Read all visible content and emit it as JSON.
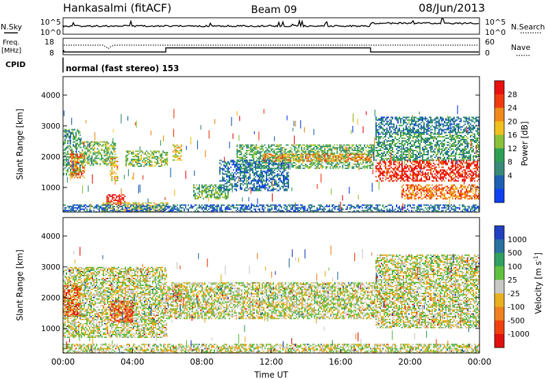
{
  "header": {
    "station": "Hankasalmi (fitACF)",
    "beam": "Beam 09",
    "date": "08/Jun/2013"
  },
  "summary_panels": {
    "nsky_label": "N.Sky",
    "nsky_top_tick": "10^5",
    "nsky_bottom_tick": "10^0",
    "nsearch_label": "N.Search",
    "nsearch_top_tick": "10^5",
    "nsearch_bottom_tick": "10^0",
    "freq_label": "Freq.",
    "freq_unit": "[MHz]",
    "freq_top_tick": "18",
    "freq_bottom_tick": "8",
    "nave_label": "Nave",
    "nave_top_tick": "60",
    "nave_bottom_tick": "0",
    "cpid_label": "CPID",
    "cpid_text": "normal (fast stereo) 153"
  },
  "chart_data": [
    {
      "type": "heatmap",
      "name": "power",
      "ylabel": "Slant Range [km]",
      "ylim": [
        200,
        4600
      ],
      "yticks": [
        "1000",
        "2000",
        "3000",
        "4000"
      ],
      "xlim": [
        0,
        24
      ],
      "colorbar": {
        "label": "Power [dB]",
        "ticks": [
          "4",
          "8",
          "12",
          "16",
          "20",
          "24",
          "28"
        ],
        "colors": [
          "#1040f0",
          "#1f5fb4",
          "#3a8a7a",
          "#2ea055",
          "#8ac03a",
          "#f0c020",
          "#f08a1a",
          "#f03a10",
          "#e81010"
        ]
      },
      "regions": [
        {
          "t": [
            0.0,
            1.0
          ],
          "r": [
            1400,
            2900
          ],
          "level": 0.35
        },
        {
          "t": [
            0.4,
            1.2
          ],
          "r": [
            1300,
            2100
          ],
          "level": 0.75
        },
        {
          "t": [
            1.0,
            3.0
          ],
          "r": [
            1700,
            2500
          ],
          "level": 0.45
        },
        {
          "t": [
            2.7,
            3.1
          ],
          "r": [
            1200,
            2000
          ],
          "level": 0.65
        },
        {
          "t": [
            2.5,
            3.6
          ],
          "r": [
            450,
            780
          ],
          "level": 0.92
        },
        {
          "t": [
            3.6,
            6.0
          ],
          "r": [
            1700,
            2200
          ],
          "level": 0.45
        },
        {
          "t": [
            2.2,
            6.0
          ],
          "r": [
            200,
            520
          ],
          "level": 0.6
        },
        {
          "t": [
            6.3,
            6.8
          ],
          "r": [
            1900,
            2400
          ],
          "level": 0.6
        },
        {
          "t": [
            7.5,
            9.5
          ],
          "r": [
            650,
            1100
          ],
          "level": 0.4
        },
        {
          "t": [
            10.0,
            17.9
          ],
          "r": [
            1600,
            2400
          ],
          "level": 0.4
        },
        {
          "t": [
            11.5,
            17.9
          ],
          "r": [
            1850,
            2100
          ],
          "level": 0.7
        },
        {
          "t": [
            9.0,
            13.0
          ],
          "r": [
            900,
            1900
          ],
          "level": 0.22
        },
        {
          "t": [
            18.0,
            24.0
          ],
          "r": [
            1200,
            1900
          ],
          "level": 0.9
        },
        {
          "t": [
            18.0,
            24.0
          ],
          "r": [
            1900,
            2800
          ],
          "level": 0.35
        },
        {
          "t": [
            18.0,
            24.0
          ],
          "r": [
            2800,
            3300
          ],
          "level": 0.25
        },
        {
          "t": [
            19.5,
            24.0
          ],
          "r": [
            650,
            1100
          ],
          "level": 0.75
        },
        {
          "t": [
            0.0,
            24.0
          ],
          "r": [
            200,
            450
          ],
          "level": 0.2
        }
      ]
    },
    {
      "type": "heatmap",
      "name": "velocity",
      "ylabel": "Slant Range [km]",
      "ylim": [
        200,
        4600
      ],
      "yticks": [
        "1000",
        "2000",
        "3000",
        "4000"
      ],
      "xlim": [
        0,
        24
      ],
      "xlabel": "Time UT",
      "xticks": [
        "00:00",
        "04:00",
        "08:00",
        "12:00",
        "16:00",
        "20:00",
        "00:00"
      ],
      "colorbar": {
        "label": "Velocity [m s-1]",
        "ticks": [
          "1000",
          "500",
          "100",
          "25",
          "-25",
          "-100",
          "-500",
          "-1000"
        ],
        "colors": [
          "#2040c0",
          "#2a70a0",
          "#30a060",
          "#60c040",
          "#c8c8c4",
          "#e8b020",
          "#f08020",
          "#f04010",
          "#e01010"
        ]
      },
      "regions": [
        {
          "t": [
            0.0,
            6.0
          ],
          "r": [
            700,
            3000
          ],
          "level": 0.5
        },
        {
          "t": [
            0.0,
            1.0
          ],
          "r": [
            1400,
            2400
          ],
          "level": 0.78
        },
        {
          "t": [
            2.7,
            4.0
          ],
          "r": [
            1200,
            1900
          ],
          "level": 0.82
        },
        {
          "t": [
            6.3,
            6.8
          ],
          "r": [
            1900,
            2400
          ],
          "level": 0.8
        },
        {
          "t": [
            6.0,
            18.0
          ],
          "r": [
            1300,
            2500
          ],
          "level": 0.5
        },
        {
          "t": [
            18.0,
            24.0
          ],
          "r": [
            1000,
            3400
          ],
          "level": 0.5
        },
        {
          "t": [
            0.0,
            24.0
          ],
          "r": [
            200,
            500
          ],
          "level": 0.5
        }
      ]
    }
  ]
}
